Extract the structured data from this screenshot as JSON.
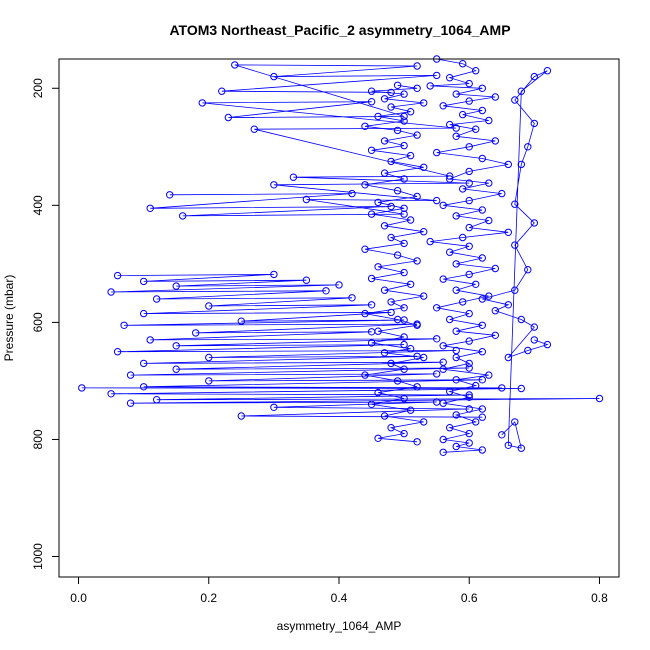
{
  "chart_data": {
    "type": "scatter",
    "title": "ATOM3 Northeast_Pacific_2 asymmetry_1064_AMP",
    "xlabel": "asymmetry_1064_AMP",
    "ylabel": "Pressure (mbar)",
    "xlim": [
      -0.03,
      0.83
    ],
    "ylim": [
      1035,
      150
    ],
    "y_reversed": true,
    "x_ticks": [
      "0.0",
      "0.2",
      "0.4",
      "0.6",
      "0.8"
    ],
    "y_ticks": [
      "200",
      "400",
      "600",
      "800",
      "1000"
    ],
    "grid": false,
    "series_color": "#0000ff",
    "marker": "open-circle",
    "series": [
      {
        "points": [
          [
            0.55,
            150
          ],
          [
            0.59,
            158
          ],
          [
            0.61,
            170
          ],
          [
            0.57,
            182
          ],
          [
            0.6,
            192
          ],
          [
            0.54,
            196
          ],
          [
            0.62,
            200
          ],
          [
            0.58,
            210
          ],
          [
            0.64,
            215
          ],
          [
            0.6,
            222
          ],
          [
            0.56,
            230
          ],
          [
            0.62,
            238
          ],
          [
            0.59,
            245
          ],
          [
            0.63,
            255
          ],
          [
            0.57,
            262
          ],
          [
            0.61,
            270
          ],
          [
            0.58,
            282
          ],
          [
            0.64,
            290
          ],
          [
            0.6,
            300
          ],
          [
            0.55,
            310
          ],
          [
            0.62,
            320
          ],
          [
            0.66,
            330
          ],
          [
            0.6,
            342
          ],
          [
            0.57,
            355
          ],
          [
            0.63,
            362
          ],
          [
            0.59,
            372
          ],
          [
            0.65,
            380
          ],
          [
            0.6,
            392
          ],
          [
            0.56,
            400
          ],
          [
            0.62,
            408
          ],
          [
            0.58,
            418
          ],
          [
            0.63,
            426
          ],
          [
            0.6,
            438
          ],
          [
            0.66,
            446
          ],
          [
            0.59,
            455
          ],
          [
            0.54,
            462
          ],
          [
            0.6,
            470
          ],
          [
            0.57,
            480
          ],
          [
            0.62,
            490
          ],
          [
            0.58,
            500
          ],
          [
            0.64,
            508
          ],
          [
            0.6,
            518
          ],
          [
            0.56,
            526
          ],
          [
            0.61,
            535
          ],
          [
            0.58,
            545
          ],
          [
            0.63,
            555
          ],
          [
            0.59,
            565
          ],
          [
            0.55,
            575
          ],
          [
            0.6,
            585
          ],
          [
            0.57,
            595
          ],
          [
            0.62,
            605
          ],
          [
            0.58,
            615
          ],
          [
            0.64,
            622
          ],
          [
            0.6,
            632
          ],
          [
            0.56,
            640
          ],
          [
            0.62,
            650
          ],
          [
            0.58,
            660
          ],
          [
            0.6,
            670
          ],
          [
            0.56,
            680
          ],
          [
            0.63,
            690
          ],
          [
            0.58,
            698
          ],
          [
            0.61,
            708
          ],
          [
            0.57,
            718
          ],
          [
            0.6,
            728
          ],
          [
            0.56,
            738
          ],
          [
            0.62,
            748
          ],
          [
            0.58,
            758
          ],
          [
            0.61,
            770
          ],
          [
            0.57,
            780
          ],
          [
            0.6,
            790
          ],
          [
            0.56,
            800
          ],
          [
            0.6,
            806
          ],
          [
            0.58,
            812
          ],
          [
            0.62,
            818
          ],
          [
            0.56,
            822
          ]
        ]
      },
      {
        "points": [
          [
            0.49,
            195
          ],
          [
            0.52,
            200
          ],
          [
            0.45,
            205
          ],
          [
            0.5,
            210
          ],
          [
            0.47,
            218
          ],
          [
            0.53,
            225
          ],
          [
            0.48,
            232
          ],
          [
            0.51,
            240
          ],
          [
            0.46,
            248
          ],
          [
            0.5,
            256
          ],
          [
            0.44,
            265
          ],
          [
            0.49,
            272
          ],
          [
            0.52,
            280
          ],
          [
            0.47,
            290
          ],
          [
            0.5,
            298
          ],
          [
            0.45,
            306
          ],
          [
            0.51,
            315
          ],
          [
            0.48,
            325
          ],
          [
            0.53,
            335
          ],
          [
            0.47,
            345
          ],
          [
            0.5,
            355
          ],
          [
            0.44,
            365
          ],
          [
            0.49,
            375
          ],
          [
            0.52,
            385
          ],
          [
            0.46,
            395
          ],
          [
            0.5,
            405
          ],
          [
            0.45,
            415
          ],
          [
            0.51,
            425
          ],
          [
            0.47,
            435
          ],
          [
            0.53,
            445
          ],
          [
            0.48,
            455
          ],
          [
            0.5,
            465
          ],
          [
            0.44,
            475
          ],
          [
            0.49,
            485
          ],
          [
            0.52,
            495
          ],
          [
            0.46,
            505
          ],
          [
            0.5,
            515
          ],
          [
            0.45,
            525
          ],
          [
            0.51,
            535
          ],
          [
            0.47,
            545
          ],
          [
            0.53,
            555
          ],
          [
            0.48,
            565
          ],
          [
            0.5,
            575
          ],
          [
            0.44,
            585
          ],
          [
            0.49,
            595
          ],
          [
            0.52,
            605
          ],
          [
            0.46,
            615
          ],
          [
            0.5,
            625
          ],
          [
            0.45,
            635
          ],
          [
            0.51,
            645
          ],
          [
            0.47,
            652
          ],
          [
            0.53,
            660
          ],
          [
            0.48,
            670
          ],
          [
            0.5,
            680
          ],
          [
            0.44,
            690
          ],
          [
            0.49,
            700
          ],
          [
            0.52,
            710
          ],
          [
            0.46,
            720
          ],
          [
            0.5,
            730
          ],
          [
            0.45,
            740
          ],
          [
            0.51,
            750
          ],
          [
            0.47,
            760
          ],
          [
            0.53,
            770
          ],
          [
            0.48,
            780
          ],
          [
            0.5,
            790
          ],
          [
            0.46,
            798
          ],
          [
            0.52,
            804
          ]
        ]
      },
      {
        "points": [
          [
            0.06,
            520
          ],
          [
            0.3,
            518
          ],
          [
            0.1,
            530
          ],
          [
            0.35,
            528
          ],
          [
            0.15,
            538
          ],
          [
            0.4,
            536
          ],
          [
            0.05,
            548
          ],
          [
            0.38,
            546
          ],
          [
            0.12,
            560
          ],
          [
            0.42,
            558
          ],
          [
            0.2,
            572
          ],
          [
            0.45,
            570
          ],
          [
            0.1,
            585
          ],
          [
            0.48,
            583
          ],
          [
            0.25,
            598
          ],
          [
            0.5,
            596
          ],
          [
            0.07,
            605
          ],
          [
            0.52,
            603
          ],
          [
            0.18,
            618
          ],
          [
            0.45,
            616
          ],
          [
            0.11,
            630
          ],
          [
            0.55,
            628
          ],
          [
            0.15,
            640
          ],
          [
            0.5,
            638
          ],
          [
            0.06,
            650
          ],
          [
            0.58,
            648
          ],
          [
            0.2,
            660
          ],
          [
            0.52,
            658
          ],
          [
            0.1,
            670
          ],
          [
            0.56,
            668
          ],
          [
            0.15,
            680
          ],
          [
            0.6,
            678
          ],
          [
            0.08,
            690
          ],
          [
            0.55,
            688
          ],
          [
            0.2,
            700
          ],
          [
            0.62,
            698
          ],
          [
            0.1,
            710
          ],
          [
            0.65,
            712
          ],
          [
            0.005,
            712
          ],
          [
            0.68,
            713
          ],
          [
            0.05,
            722
          ],
          [
            0.6,
            724
          ],
          [
            0.12,
            732
          ],
          [
            0.8,
            730
          ],
          [
            0.08,
            738
          ],
          [
            0.55,
            736
          ],
          [
            0.3,
            745
          ],
          [
            0.6,
            748
          ],
          [
            0.25,
            760
          ],
          [
            0.62,
            762
          ]
        ]
      },
      {
        "points": [
          [
            0.14,
            382
          ],
          [
            0.42,
            380
          ],
          [
            0.11,
            405
          ],
          [
            0.48,
            402
          ],
          [
            0.16,
            418
          ],
          [
            0.5,
            415
          ],
          [
            0.35,
            390
          ],
          [
            0.55,
            392
          ],
          [
            0.3,
            365
          ],
          [
            0.6,
            362
          ],
          [
            0.33,
            352
          ],
          [
            0.57,
            350
          ],
          [
            0.27,
            270
          ],
          [
            0.58,
            268
          ],
          [
            0.19,
            225
          ],
          [
            0.45,
            223
          ],
          [
            0.23,
            250
          ],
          [
            0.5,
            248
          ],
          [
            0.24,
            160
          ],
          [
            0.52,
            162
          ],
          [
            0.3,
            180
          ],
          [
            0.55,
            178
          ],
          [
            0.22,
            205
          ],
          [
            0.48,
            207
          ]
        ]
      },
      {
        "points": [
          [
            0.7,
            630
          ],
          [
            0.72,
            638
          ],
          [
            0.69,
            648
          ],
          [
            0.66,
            660
          ],
          [
            0.7,
            608
          ],
          [
            0.68,
            595
          ],
          [
            0.64,
            580
          ],
          [
            0.66,
            570
          ],
          [
            0.62,
            560
          ],
          [
            0.67,
            545
          ],
          [
            0.69,
            510
          ],
          [
            0.67,
            468
          ],
          [
            0.7,
            430
          ],
          [
            0.67,
            398
          ],
          [
            0.68,
            330
          ],
          [
            0.69,
            300
          ],
          [
            0.7,
            260
          ],
          [
            0.67,
            220
          ],
          [
            0.7,
            180
          ],
          [
            0.72,
            170
          ],
          [
            0.68,
            205
          ],
          [
            0.66,
            810
          ],
          [
            0.68,
            815
          ],
          [
            0.67,
            770
          ],
          [
            0.65,
            792
          ]
        ]
      }
    ]
  }
}
